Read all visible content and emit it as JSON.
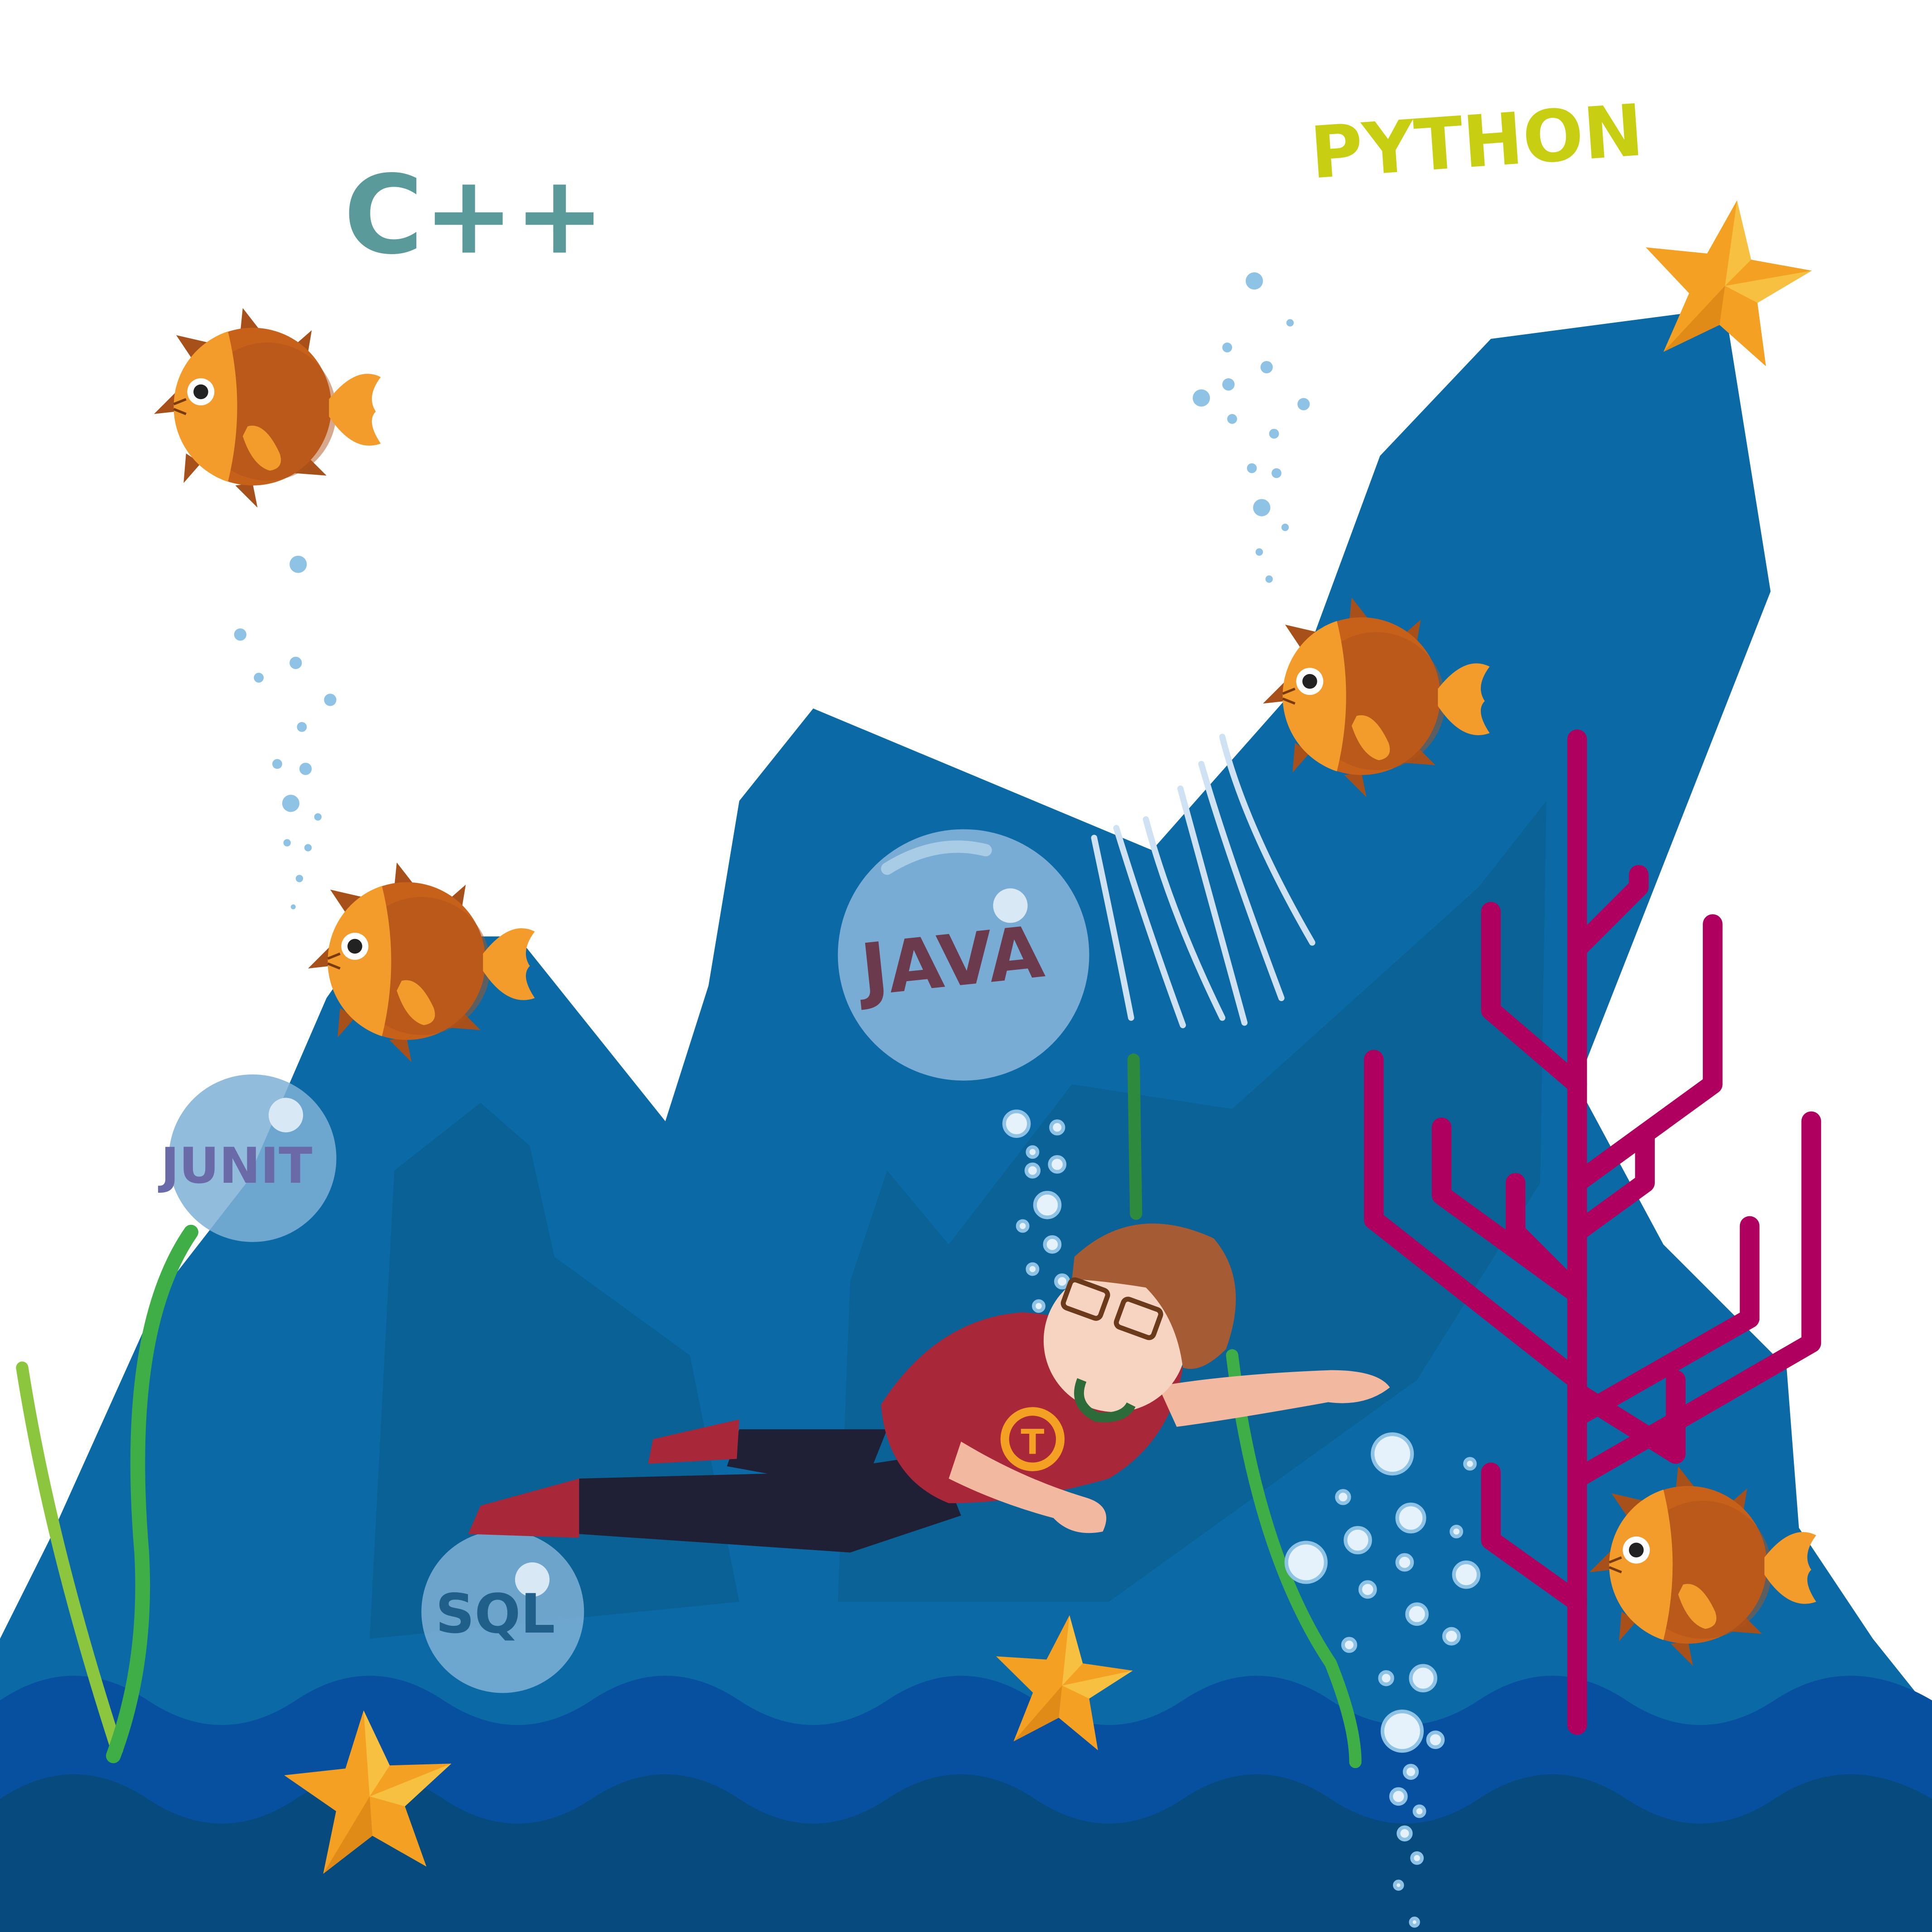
{
  "labels": {
    "cpp": "C++",
    "python": "PYTHON",
    "java": "JAVA",
    "junit": "JUNIT",
    "sql": "SQL"
  },
  "emblem_letter": "T",
  "colors": {
    "background": "#ffffff",
    "mountain": "#0b6aa6",
    "mountain_shadow": "#0a5e8e",
    "wave_top": "#0750a0",
    "wave_bottom": "#074a7e",
    "fish_body": "#c7611a",
    "fish_face": "#f39c2b",
    "starfish": "#f3a023",
    "coral": "#b0005f",
    "seaweed": "#3fae47",
    "bubble": "#7fb0d6",
    "cpp_text": "#5a9a9a",
    "python_text": "#c8cf12",
    "java_text": "#6b3a4d",
    "junit_text": "#6a6aa8",
    "sql_text": "#1f5f8a"
  }
}
